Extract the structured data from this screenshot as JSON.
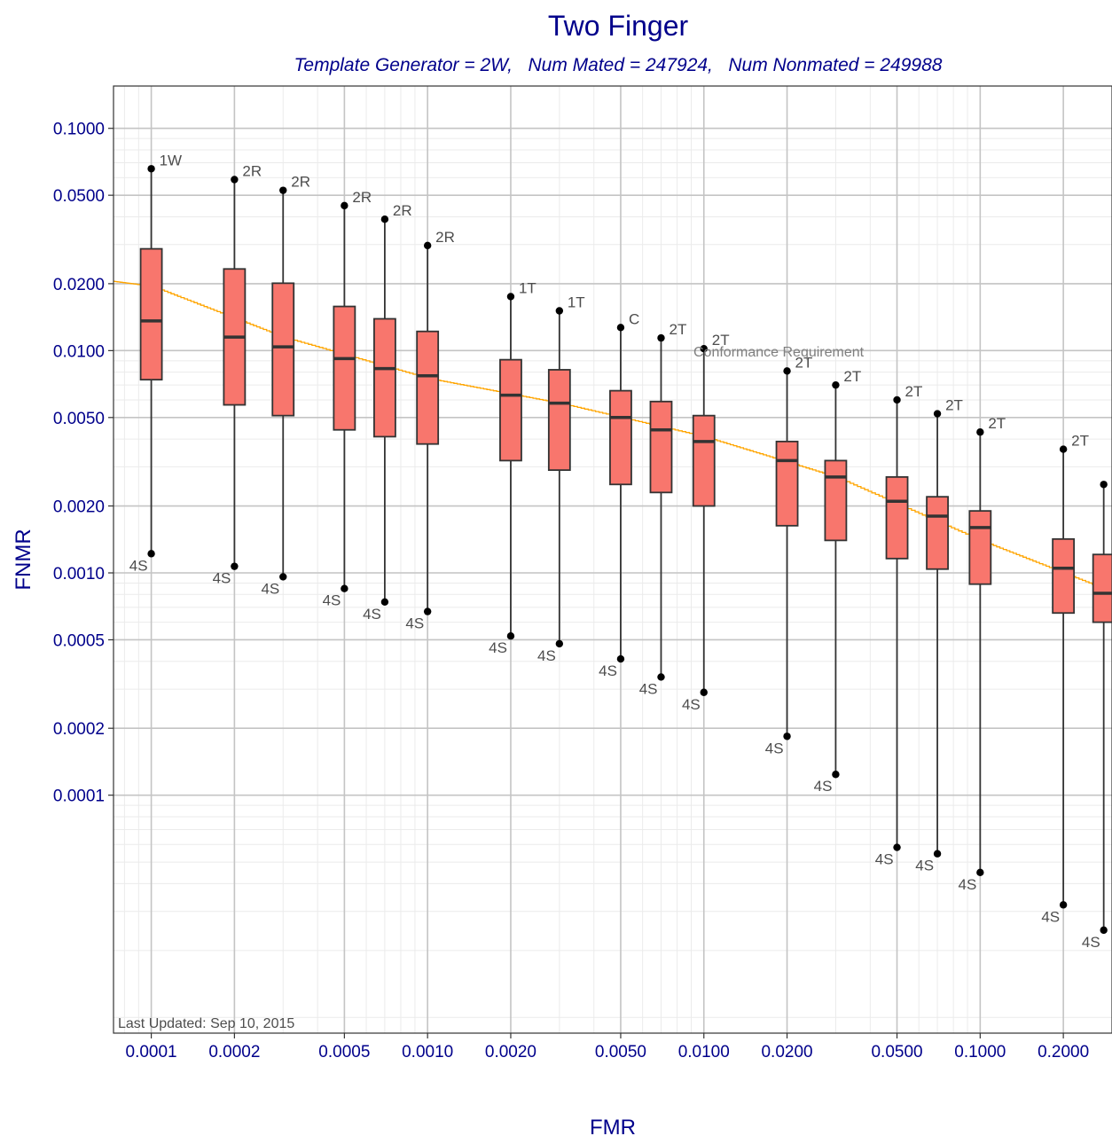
{
  "chart_data": {
    "type": "boxplot",
    "title": "Two Finger",
    "subtitle": "Template Generator = 2W,   Num Mated = 247924,   Num Nonmated = 249988",
    "xlabel": "FMR",
    "ylabel": "FNMR",
    "x_scale": "log",
    "y_scale": "log",
    "x_ticks": [
      0.0001,
      0.0002,
      0.0005,
      0.001,
      0.002,
      0.005,
      0.01,
      0.02,
      0.05,
      0.1,
      0.2
    ],
    "x_tick_labels": [
      "0.0001",
      "0.0002",
      "0.0005",
      "0.0010",
      "0.0020",
      "0.0050",
      "0.0100",
      "0.0200",
      "0.0500",
      "0.1000",
      "0.2000"
    ],
    "y_ticks": [
      0.1,
      0.05,
      0.02,
      0.01,
      0.005,
      0.002,
      0.001,
      0.0005,
      0.0002,
      0.0001
    ],
    "y_tick_labels": [
      "0.1000",
      "0.0500",
      "0.0200",
      "0.0100",
      "0.0050",
      "0.0020",
      "0.0010",
      "0.0005",
      "0.0002",
      "0.0001"
    ],
    "xlim": [
      7.3e-05,
      0.3
    ],
    "ylim": [
      8.5e-06,
      0.155
    ],
    "grid": true,
    "boxes": [
      {
        "fmr": 0.0001,
        "min": 0.00122,
        "q1": 0.0074,
        "median": 0.0136,
        "q3": 0.0287,
        "max": 0.0658,
        "max_label": "1W",
        "min_label": "4S"
      },
      {
        "fmr": 0.0002,
        "min": 0.00107,
        "q1": 0.0057,
        "median": 0.0115,
        "q3": 0.0233,
        "max": 0.0588,
        "max_label": "2R",
        "min_label": "4S"
      },
      {
        "fmr": 0.0003,
        "min": 0.00096,
        "q1": 0.0051,
        "median": 0.0104,
        "q3": 0.0201,
        "max": 0.0526,
        "max_label": "2R",
        "min_label": "4S"
      },
      {
        "fmr": 0.0005,
        "min": 0.00085,
        "q1": 0.0044,
        "median": 0.0092,
        "q3": 0.0158,
        "max": 0.0449,
        "max_label": "2R",
        "min_label": "4S"
      },
      {
        "fmr": 0.0007,
        "min": 0.00074,
        "q1": 0.0041,
        "median": 0.0083,
        "q3": 0.0139,
        "max": 0.039,
        "max_label": "2R",
        "min_label": "4S"
      },
      {
        "fmr": 0.001,
        "min": 0.00067,
        "q1": 0.0038,
        "median": 0.0077,
        "q3": 0.0122,
        "max": 0.0297,
        "max_label": "2R",
        "min_label": "4S"
      },
      {
        "fmr": 0.002,
        "min": 0.00052,
        "q1": 0.0032,
        "median": 0.0063,
        "q3": 0.0091,
        "max": 0.0175,
        "max_label": "1T",
        "min_label": "4S"
      },
      {
        "fmr": 0.003,
        "min": 0.00048,
        "q1": 0.0029,
        "median": 0.0058,
        "q3": 0.0082,
        "max": 0.0151,
        "max_label": "1T",
        "min_label": "4S"
      },
      {
        "fmr": 0.005,
        "min": 0.00041,
        "q1": 0.0025,
        "median": 0.005,
        "q3": 0.0066,
        "max": 0.0127,
        "max_label": "C",
        "min_label": "4S"
      },
      {
        "fmr": 0.007,
        "min": 0.00034,
        "q1": 0.0023,
        "median": 0.0044,
        "q3": 0.0059,
        "max": 0.0114,
        "max_label": "2T",
        "min_label": "4S"
      },
      {
        "fmr": 0.01,
        "min": 0.00029,
        "q1": 0.002,
        "median": 0.0039,
        "q3": 0.0051,
        "max": 0.0102,
        "max_label": "2T",
        "min_label": "4S"
      },
      {
        "fmr": 0.02,
        "min": 0.000184,
        "q1": 0.00163,
        "median": 0.0032,
        "q3": 0.0039,
        "max": 0.0081,
        "max_label": "2T",
        "min_label": "4S"
      },
      {
        "fmr": 0.03,
        "min": 0.000124,
        "q1": 0.0014,
        "median": 0.0027,
        "q3": 0.0032,
        "max": 0.007,
        "max_label": "2T",
        "min_label": "4S"
      },
      {
        "fmr": 0.05,
        "min": 5.82e-05,
        "q1": 0.00116,
        "median": 0.0021,
        "q3": 0.0027,
        "max": 0.006,
        "max_label": "2T",
        "min_label": "4S"
      },
      {
        "fmr": 0.07,
        "min": 5.45e-05,
        "q1": 0.00104,
        "median": 0.0018,
        "q3": 0.0022,
        "max": 0.0052,
        "max_label": "2T",
        "min_label": "4S"
      },
      {
        "fmr": 0.1,
        "min": 4.49e-05,
        "q1": 0.00089,
        "median": 0.0016,
        "q3": 0.0019,
        "max": 0.0043,
        "max_label": "2T",
        "min_label": "4S"
      },
      {
        "fmr": 0.2,
        "min": 3.21e-05,
        "q1": 0.00066,
        "median": 0.00105,
        "q3": 0.00142,
        "max": 0.0036,
        "max_label": "2T",
        "min_label": "4S"
      },
      {
        "fmr": 0.28,
        "min": 2.47e-05,
        "q1": 0.0006,
        "median": 0.00081,
        "q3": 0.00121,
        "max": 0.0025,
        "max_label": "2T",
        "min_label": "4S"
      }
    ],
    "reference_line": {
      "label": "Conformance Requirement",
      "points": [
        [
          7.3e-05,
          0.0205
        ],
        [
          0.0001,
          0.0195
        ],
        [
          0.0003,
          0.0115
        ],
        [
          0.001,
          0.0075
        ],
        [
          0.003,
          0.0058
        ],
        [
          0.01,
          0.0041
        ],
        [
          0.03,
          0.0027
        ],
        [
          0.1,
          0.0014
        ],
        [
          0.3,
          0.00082
        ]
      ]
    },
    "box_color": "#f8766d",
    "line_color": "#ffa500"
  },
  "footer": {
    "last_updated": "Last Updated: Sep 10, 2015"
  }
}
